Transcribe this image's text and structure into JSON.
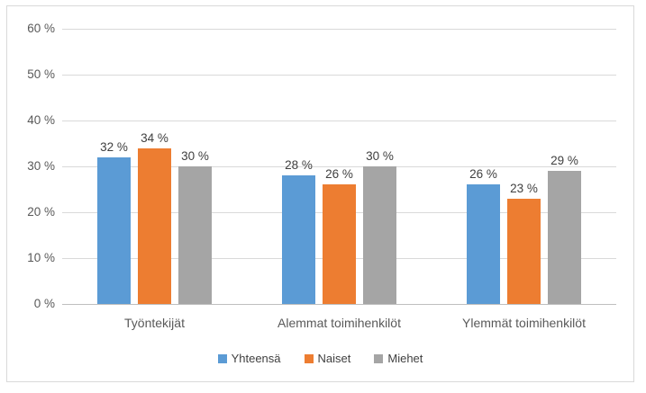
{
  "chart_data": {
    "type": "bar",
    "title": "",
    "categories": [
      "Työntekijät",
      "Alemmat toimihenkilöt",
      "Ylemmät toimihenkilöt"
    ],
    "series": [
      {
        "name": "Yhteensä",
        "color": "#5B9BD5",
        "values": [
          32,
          28,
          26
        ]
      },
      {
        "name": "Naiset",
        "color": "#ED7D31",
        "values": [
          34,
          26,
          23
        ]
      },
      {
        "name": "Miehet",
        "color": "#A5A5A5",
        "values": [
          30,
          30,
          29
        ]
      }
    ],
    "data_labels": [
      [
        "32 %",
        "28 %",
        "26 %"
      ],
      [
        "34 %",
        "26 %",
        "23 %"
      ],
      [
        "30 %",
        "30 %",
        "29 %"
      ]
    ],
    "ylim": [
      0,
      60
    ],
    "y_tick_step": 10,
    "y_tick_labels": [
      "0 %",
      "10 %",
      "20 %",
      "30 %",
      "40 %",
      "50 %",
      "60 %"
    ],
    "grid": true,
    "legend_position": "bottom",
    "legend_entries": [
      "Yhteensä",
      "Naiset",
      "Miehet"
    ]
  },
  "colors": {
    "series_blue": "#5B9BD5",
    "series_orange": "#ED7D31",
    "series_gray": "#A5A5A5",
    "gridline": "#D9D9D9",
    "axis_baseline": "#BFBFBF",
    "axis_text": "#595959",
    "data_label_text": "#404040",
    "frame_border": "#D9D9D9",
    "background": "#FFFFFF"
  }
}
